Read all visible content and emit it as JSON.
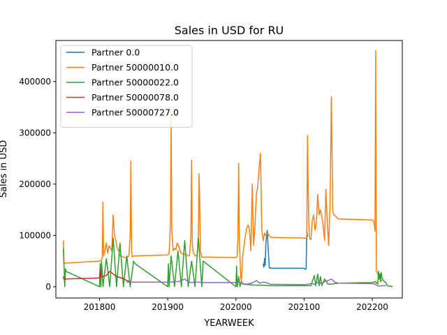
{
  "chart_data": {
    "type": "line",
    "title": "Sales in USD for RU",
    "xlabel": "YEARWEEK",
    "ylabel": "Sales in USD",
    "xlim": [
      201736,
      202244
    ],
    "ylim": [
      -22000,
      480000
    ],
    "xticks": [
      201800,
      201900,
      202000,
      202100,
      202200
    ],
    "yticks": [
      0,
      100000,
      200000,
      300000,
      400000
    ],
    "ytick_labels": [
      "0",
      "100000",
      "200000",
      "300000",
      "400000"
    ],
    "grid": false,
    "legend_position": "top-left",
    "series": [
      {
        "name": "Partner 0.0",
        "color": "#1f77b4",
        "x": [
          202040,
          202041,
          202042,
          202043,
          202044,
          202045,
          202046,
          202047,
          202048,
          202049,
          202050,
          202051,
          202052,
          202100,
          202101,
          202102,
          202103,
          202104,
          202105
        ],
        "y": [
          45000,
          38000,
          55000,
          42000,
          85000,
          100000,
          110000,
          80000,
          60000,
          37000,
          36000,
          37000,
          36000,
          36000,
          35000,
          34000,
          35000,
          110000,
          98000
        ]
      },
      {
        "name": "Partner 50000010.0",
        "color": "#ff7f0e",
        "x": [
          201747,
          201748,
          201749,
          201800,
          201804,
          201805,
          201806,
          201807,
          201808,
          201810,
          201812,
          201814,
          201816,
          201818,
          201820,
          201822,
          201824,
          201826,
          201828,
          201830,
          201835,
          201840,
          201843,
          201845,
          201846,
          201847,
          201848,
          201850,
          201900,
          201902,
          201904,
          201905,
          201906,
          201908,
          201910,
          201912,
          201914,
          201916,
          201918,
          201920,
          201924,
          201928,
          201932,
          201934,
          201935,
          201936,
          201937,
          201938,
          201940,
          201943,
          201945,
          201946,
          201947,
          201948,
          201950,
          202000,
          202002,
          202003,
          202004,
          202005,
          202006,
          202007,
          202008,
          202010,
          202012,
          202014,
          202016,
          202018,
          202020,
          202022,
          202024,
          202026,
          202028,
          202030,
          202032,
          202034,
          202036,
          202038,
          202040,
          202042,
          202044,
          202045,
          202046,
          202047,
          202048,
          202050,
          202052,
          202100,
          202103,
          202104,
          202105,
          202106,
          202107,
          202108,
          202110,
          202112,
          202114,
          202116,
          202118,
          202120,
          202122,
          202124,
          202126,
          202128,
          202130,
          202132,
          202134,
          202136,
          202138,
          202140,
          202142,
          202144,
          202146,
          202148,
          202150,
          202200,
          202202,
          202203,
          202204,
          202205,
          202206,
          202208,
          202210,
          202212,
          202214
        ],
        "y": [
          90000,
          45000,
          46000,
          50000,
          55000,
          165000,
          60000,
          65000,
          70000,
          85000,
          65000,
          80000,
          75000,
          70000,
          140000,
          100000,
          90000,
          75000,
          70000,
          60000,
          58000,
          56000,
          60000,
          100000,
          245000,
          70000,
          58000,
          60000,
          62000,
          64000,
          120000,
          330000,
          110000,
          70000,
          75000,
          72000,
          85000,
          80000,
          70000,
          65000,
          63000,
          62000,
          60000,
          100000,
          247000,
          85000,
          70000,
          65000,
          60000,
          62000,
          100000,
          220000,
          160000,
          70000,
          58000,
          57000,
          60000,
          100000,
          240000,
          100000,
          60000,
          20000,
          10000,
          60000,
          80000,
          100000,
          115000,
          120000,
          110000,
          70000,
          200000,
          80000,
          120000,
          180000,
          195000,
          230000,
          260000,
          110000,
          90000,
          105000,
          100000,
          102000,
          103000,
          104000,
          100000,
          98000,
          96000,
          95000,
          94000,
          100000,
          295000,
          190000,
          120000,
          95000,
          92000,
          130000,
          140000,
          110000,
          125000,
          180000,
          140000,
          150000,
          135000,
          120000,
          90000,
          190000,
          125000,
          80000,
          160000,
          370000,
          145000,
          140000,
          138000,
          135000,
          132000,
          130000,
          128000,
          120000,
          108000,
          460000,
          30000,
          25000,
          20000,
          18000,
          10000
        ]
      },
      {
        "name": "Partner 50000022.0",
        "color": "#2ca02c",
        "x": [
          201747,
          201748,
          201749,
          201750,
          201751,
          201800,
          201801,
          201802,
          201803,
          201805,
          201810,
          201815,
          201820,
          201825,
          201830,
          201835,
          201840,
          201845,
          201850,
          201852,
          201900,
          201901,
          201902,
          201905,
          201910,
          201915,
          201920,
          201925,
          201930,
          201935,
          201940,
          201945,
          201950,
          201952,
          202000,
          202001,
          202002,
          202004,
          202006,
          202008,
          202010,
          202020,
          202030,
          202040,
          202050,
          202100,
          202110,
          202115,
          202117,
          202120,
          202122,
          202124,
          202126,
          202130,
          202135,
          202140,
          202145,
          202150,
          202200,
          202205,
          202208,
          202209,
          202210,
          202211,
          202212,
          202213,
          202214,
          202216,
          202220,
          202222,
          202230
        ],
        "y": [
          75000,
          40000,
          0,
          35000,
          30000,
          0,
          45000,
          0,
          50000,
          0,
          55000,
          0,
          95000,
          0,
          85000,
          0,
          60000,
          0,
          50000,
          45000,
          0,
          45000,
          0,
          60000,
          0,
          70000,
          0,
          90000,
          0,
          50000,
          0,
          95000,
          0,
          50000,
          0,
          40000,
          0,
          20000,
          0,
          10000,
          5000,
          4000,
          3000,
          3000,
          2000,
          2000,
          2000,
          22000,
          2000,
          25000,
          2000,
          20000,
          2000,
          15000,
          5000,
          5000,
          6000,
          7000,
          8000,
          10000,
          5000,
          30000,
          15000,
          25000,
          10000,
          28000,
          20000,
          12000,
          8000,
          2000,
          0
        ]
      },
      {
        "name": "Partner 50000078.0",
        "color": "#d62728",
        "x": [
          201747,
          201748,
          201750,
          201800,
          201801,
          201802,
          201805,
          201810,
          201815,
          201820,
          201825,
          201830,
          201835,
          201840,
          201845
        ],
        "y": [
          20000,
          14000,
          15000,
          17000,
          35000,
          18000,
          20000,
          22000,
          30000,
          25000,
          20000,
          18000,
          16000,
          12000,
          10000
        ]
      },
      {
        "name": "Partner 50000727.0",
        "color": "#9467bd",
        "x": [
          201840,
          201845,
          201850,
          201900,
          201905,
          201910,
          201915,
          201920,
          201925,
          201930,
          201935,
          201940,
          201945,
          201950,
          202000,
          202005,
          202010,
          202015,
          202020,
          202025,
          202030,
          202035,
          202040,
          202045,
          202050,
          202100,
          202105,
          202110,
          202115,
          202120,
          202125,
          202130,
          202135,
          202140,
          202145,
          202150,
          202200,
          202205,
          202207,
          202210,
          202215,
          202220
        ],
        "y": [
          9000,
          9000,
          9000,
          9000,
          9000,
          10000,
          10000,
          12000,
          15000,
          10000,
          8000,
          9000,
          9000,
          8000,
          8000,
          8000,
          6000,
          5000,
          6000,
          8000,
          12000,
          7000,
          9000,
          8000,
          5000,
          4000,
          5000,
          6000,
          5000,
          8000,
          6000,
          10000,
          12000,
          15000,
          9000,
          7000,
          6000,
          5000,
          2000,
          1000,
          2000,
          2000
        ]
      }
    ]
  }
}
